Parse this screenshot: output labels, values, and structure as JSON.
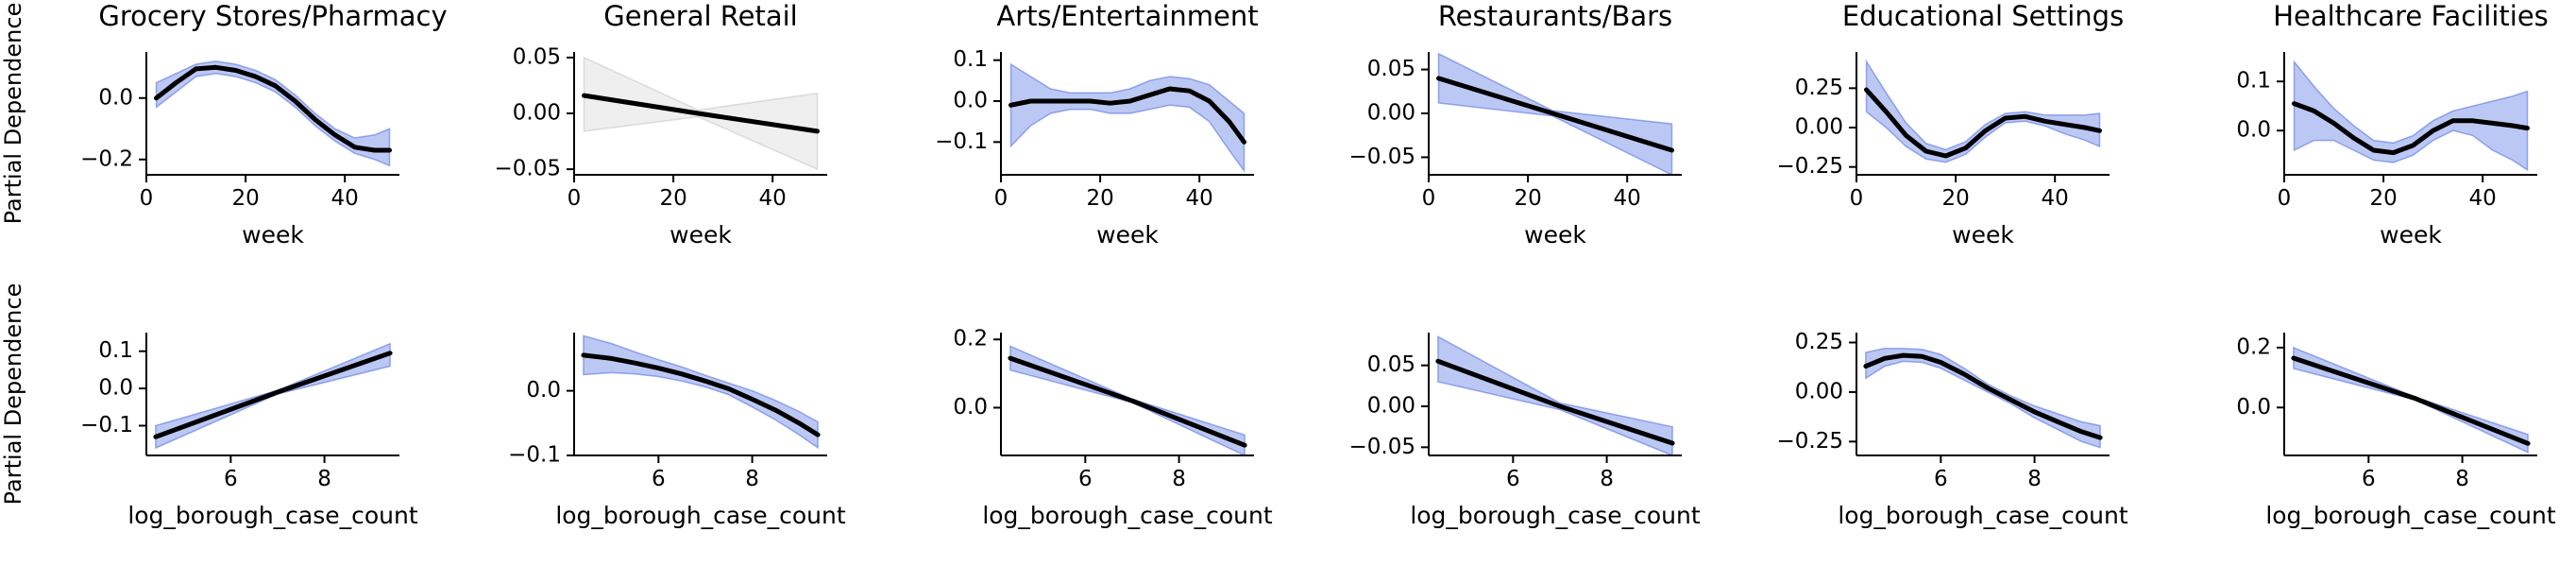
{
  "figure": {
    "row_ylabels": [
      "Partial Dependence",
      "Partial Dependence"
    ]
  },
  "chart_data": [
    {
      "type": "line",
      "title": "Grocery Stores/Pharmacy",
      "xlabel": "week",
      "ylabel": "",
      "xlim": [
        0,
        51
      ],
      "ylim": [
        -0.25,
        0.15
      ],
      "xticks": [
        0,
        20,
        40
      ],
      "xtick_labels": [
        "0",
        "20",
        "40"
      ],
      "yticks": [
        -0.2,
        0.0
      ],
      "ytick_labels": [
        "−0.2",
        "0.0"
      ],
      "band_color": "#4060e0",
      "band_opacity": 0.35,
      "series": [
        {
          "x": [
            2,
            6,
            10,
            14,
            18,
            22,
            26,
            30,
            34,
            38,
            42,
            46,
            49
          ],
          "y": [
            0.0,
            0.05,
            0.095,
            0.1,
            0.09,
            0.07,
            0.04,
            -0.01,
            -0.07,
            -0.12,
            -0.16,
            -0.17,
            -0.17
          ],
          "lower": [
            -0.03,
            0.02,
            0.07,
            0.08,
            0.07,
            0.05,
            0.02,
            -0.03,
            -0.09,
            -0.14,
            -0.18,
            -0.2,
            -0.22
          ],
          "upper": [
            0.05,
            0.08,
            0.11,
            0.12,
            0.11,
            0.09,
            0.06,
            0.01,
            -0.05,
            -0.1,
            -0.13,
            -0.12,
            -0.1
          ]
        }
      ]
    },
    {
      "type": "line",
      "title": "General Retail",
      "xlabel": "week",
      "ylabel": "",
      "xlim": [
        0,
        51
      ],
      "ylim": [
        -0.055,
        0.055
      ],
      "xticks": [
        0,
        20,
        40
      ],
      "xtick_labels": [
        "0",
        "20",
        "40"
      ],
      "yticks": [
        -0.05,
        0.0,
        0.05
      ],
      "ytick_labels": [
        "−0.05",
        "0.00",
        "0.05"
      ],
      "band_color": "#c0c0c0",
      "band_opacity": 0.25,
      "series": [
        {
          "x": [
            2,
            25,
            49
          ],
          "y": [
            0.016,
            0.0,
            -0.016
          ],
          "lower": [
            -0.016,
            -0.003,
            -0.05
          ],
          "upper": [
            0.05,
            0.003,
            0.018
          ]
        }
      ]
    },
    {
      "type": "line",
      "title": "Arts/Entertainment",
      "xlabel": "week",
      "ylabel": "",
      "xlim": [
        0,
        51
      ],
      "ylim": [
        -0.18,
        0.12
      ],
      "xticks": [
        0,
        20,
        40
      ],
      "xtick_labels": [
        "0",
        "20",
        "40"
      ],
      "yticks": [
        -0.1,
        0.0,
        0.1
      ],
      "ytick_labels": [
        "−0.1",
        "0.0",
        "0.1"
      ],
      "band_color": "#4060e0",
      "band_opacity": 0.35,
      "series": [
        {
          "x": [
            2,
            6,
            10,
            14,
            18,
            22,
            26,
            30,
            34,
            38,
            42,
            46,
            49
          ],
          "y": [
            -0.01,
            0.0,
            0.0,
            0.0,
            0.0,
            -0.005,
            0.0,
            0.015,
            0.03,
            0.025,
            0.0,
            -0.05,
            -0.1
          ],
          "lower": [
            -0.11,
            -0.06,
            -0.03,
            -0.02,
            -0.02,
            -0.03,
            -0.03,
            -0.02,
            -0.01,
            -0.015,
            -0.05,
            -0.12,
            -0.17
          ],
          "upper": [
            0.09,
            0.06,
            0.03,
            0.02,
            0.02,
            0.02,
            0.03,
            0.05,
            0.06,
            0.055,
            0.04,
            0.0,
            -0.03
          ]
        }
      ]
    },
    {
      "type": "line",
      "title": "Restaurants/Bars",
      "xlabel": "week",
      "ylabel": "",
      "xlim": [
        0,
        51
      ],
      "ylim": [
        -0.07,
        0.07
      ],
      "xticks": [
        0,
        20,
        40
      ],
      "xtick_labels": [
        "0",
        "20",
        "40"
      ],
      "yticks": [
        -0.05,
        0.0,
        0.05
      ],
      "ytick_labels": [
        "−0.05",
        "0.00",
        "0.05"
      ],
      "band_color": "#4060e0",
      "band_opacity": 0.35,
      "series": [
        {
          "x": [
            2,
            25,
            49
          ],
          "y": [
            0.04,
            0.0,
            -0.042
          ],
          "lower": [
            0.012,
            -0.003,
            -0.07
          ],
          "upper": [
            0.068,
            0.003,
            -0.012
          ]
        }
      ]
    },
    {
      "type": "line",
      "title": "Educational Settings",
      "xlabel": "week",
      "ylabel": "",
      "xlim": [
        0,
        51
      ],
      "ylim": [
        -0.3,
        0.48
      ],
      "xticks": [
        0,
        20,
        40
      ],
      "xtick_labels": [
        "0",
        "20",
        "40"
      ],
      "yticks": [
        -0.25,
        0.0,
        0.25
      ],
      "ytick_labels": [
        "−0.25",
        "0.00",
        "0.25"
      ],
      "band_color": "#4060e0",
      "band_opacity": 0.35,
      "series": [
        {
          "x": [
            2,
            6,
            10,
            14,
            18,
            22,
            26,
            30,
            34,
            38,
            42,
            46,
            49
          ],
          "y": [
            0.24,
            0.1,
            -0.05,
            -0.15,
            -0.18,
            -0.13,
            -0.02,
            0.06,
            0.07,
            0.04,
            0.02,
            0.0,
            -0.02
          ],
          "lower": [
            0.1,
            0.0,
            -0.12,
            -0.2,
            -0.22,
            -0.17,
            -0.06,
            0.03,
            0.04,
            0.01,
            -0.04,
            -0.08,
            -0.12
          ],
          "upper": [
            0.42,
            0.22,
            0.03,
            -0.1,
            -0.14,
            -0.09,
            0.02,
            0.09,
            0.1,
            0.08,
            0.08,
            0.08,
            0.09
          ]
        }
      ]
    },
    {
      "type": "line",
      "title": "Healthcare Facilities",
      "xlabel": "week",
      "ylabel": "",
      "xlim": [
        0,
        51
      ],
      "ylim": [
        -0.09,
        0.16
      ],
      "xticks": [
        0,
        20,
        40
      ],
      "xtick_labels": [
        "0",
        "20",
        "40"
      ],
      "yticks": [
        0.0,
        0.1
      ],
      "ytick_labels": [
        "0.0",
        "0.1"
      ],
      "band_color": "#4060e0",
      "band_opacity": 0.35,
      "series": [
        {
          "x": [
            2,
            6,
            10,
            14,
            18,
            22,
            26,
            30,
            34,
            38,
            42,
            46,
            49
          ],
          "y": [
            0.055,
            0.04,
            0.015,
            -0.015,
            -0.04,
            -0.045,
            -0.03,
            0.0,
            0.02,
            0.02,
            0.015,
            0.01,
            0.005
          ],
          "lower": [
            -0.04,
            -0.02,
            -0.02,
            -0.04,
            -0.06,
            -0.065,
            -0.05,
            -0.02,
            0.0,
            -0.01,
            -0.04,
            -0.06,
            -0.08
          ],
          "upper": [
            0.14,
            0.09,
            0.045,
            0.01,
            -0.02,
            -0.025,
            -0.01,
            0.02,
            0.04,
            0.05,
            0.06,
            0.07,
            0.08
          ]
        }
      ]
    },
    {
      "type": "line",
      "title": "",
      "xlabel": "log_borough_case_count",
      "ylabel": "",
      "xlim": [
        4.2,
        9.6
      ],
      "ylim": [
        -0.18,
        0.15
      ],
      "xticks": [
        6,
        8
      ],
      "xtick_labels": [
        "6",
        "8"
      ],
      "yticks": [
        -0.1,
        0.0,
        0.1
      ],
      "ytick_labels": [
        "−0.1",
        "0.0",
        "0.1"
      ],
      "band_color": "#4060e0",
      "band_opacity": 0.35,
      "series": [
        {
          "x": [
            4.4,
            7,
            9.4
          ],
          "y": [
            -0.13,
            -0.01,
            0.095
          ],
          "lower": [
            -0.16,
            -0.015,
            0.06
          ],
          "upper": [
            -0.1,
            -0.005,
            0.12
          ]
        }
      ]
    },
    {
      "type": "line",
      "title": "",
      "xlabel": "log_borough_case_count",
      "ylabel": "",
      "xlim": [
        4.2,
        9.6
      ],
      "ylim": [
        -0.1,
        0.09
      ],
      "xticks": [
        6,
        8
      ],
      "xtick_labels": [
        "6",
        "8"
      ],
      "yticks": [
        -0.1,
        0.0
      ],
      "ytick_labels": [
        "−0.1",
        "0.0"
      ],
      "band_color": "#4060e0",
      "band_opacity": 0.35,
      "series": [
        {
          "x": [
            4.4,
            5,
            5.5,
            6,
            6.5,
            7,
            7.5,
            8,
            8.5,
            9,
            9.4
          ],
          "y": [
            0.055,
            0.05,
            0.043,
            0.035,
            0.026,
            0.015,
            0.003,
            -0.013,
            -0.03,
            -0.05,
            -0.068
          ],
          "lower": [
            0.025,
            0.028,
            0.026,
            0.022,
            0.015,
            0.006,
            -0.006,
            -0.025,
            -0.045,
            -0.068,
            -0.088
          ],
          "upper": [
            0.085,
            0.073,
            0.06,
            0.048,
            0.037,
            0.024,
            0.012,
            0.0,
            -0.015,
            -0.032,
            -0.048
          ]
        }
      ]
    },
    {
      "type": "line",
      "title": "",
      "xlabel": "log_borough_case_count",
      "ylabel": "",
      "xlim": [
        4.2,
        9.6
      ],
      "ylim": [
        -0.14,
        0.22
      ],
      "xticks": [
        6,
        8
      ],
      "xtick_labels": [
        "6",
        "8"
      ],
      "yticks": [
        0.0,
        0.2
      ],
      "ytick_labels": [
        "0.0",
        "0.2"
      ],
      "band_color": "#4060e0",
      "band_opacity": 0.35,
      "series": [
        {
          "x": [
            4.4,
            7,
            9.4
          ],
          "y": [
            0.145,
            0.02,
            -0.11
          ],
          "lower": [
            0.11,
            0.015,
            -0.14
          ],
          "upper": [
            0.18,
            0.025,
            -0.08
          ]
        }
      ]
    },
    {
      "type": "line",
      "title": "",
      "xlabel": "log_borough_case_count",
      "ylabel": "",
      "xlim": [
        4.2,
        9.6
      ],
      "ylim": [
        -0.06,
        0.09
      ],
      "xticks": [
        6,
        8
      ],
      "xtick_labels": [
        "6",
        "8"
      ],
      "yticks": [
        -0.05,
        0.0,
        0.05
      ],
      "ytick_labels": [
        "−0.05",
        "0.00",
        "0.05"
      ],
      "band_color": "#4060e0",
      "band_opacity": 0.35,
      "series": [
        {
          "x": [
            4.4,
            7,
            9.4
          ],
          "y": [
            0.055,
            0.0,
            -0.045
          ],
          "lower": [
            0.03,
            -0.004,
            -0.06
          ],
          "upper": [
            0.085,
            0.004,
            -0.025
          ]
        }
      ]
    },
    {
      "type": "line",
      "title": "",
      "xlabel": "log_borough_case_count",
      "ylabel": "",
      "xlim": [
        4.2,
        9.6
      ],
      "ylim": [
        -0.32,
        0.3
      ],
      "xticks": [
        6,
        8
      ],
      "xtick_labels": [
        "6",
        "8"
      ],
      "yticks": [
        -0.25,
        0.0,
        0.25
      ],
      "ytick_labels": [
        "−0.25",
        "0.00",
        "0.25"
      ],
      "band_color": "#4060e0",
      "band_opacity": 0.35,
      "series": [
        {
          "x": [
            4.4,
            4.8,
            5.2,
            5.6,
            6,
            6.5,
            7,
            7.5,
            8,
            8.5,
            9,
            9.4
          ],
          "y": [
            0.13,
            0.17,
            0.185,
            0.18,
            0.15,
            0.09,
            0.02,
            -0.04,
            -0.1,
            -0.15,
            -0.2,
            -0.23
          ],
          "lower": [
            0.07,
            0.13,
            0.155,
            0.15,
            0.12,
            0.06,
            0.0,
            -0.06,
            -0.13,
            -0.19,
            -0.25,
            -0.28
          ],
          "upper": [
            0.2,
            0.22,
            0.22,
            0.215,
            0.19,
            0.12,
            0.04,
            -0.02,
            -0.07,
            -0.11,
            -0.15,
            -0.17
          ]
        }
      ]
    },
    {
      "type": "line",
      "title": "",
      "xlabel": "log_borough_case_count",
      "ylabel": "",
      "xlim": [
        4.2,
        9.6
      ],
      "ylim": [
        -0.16,
        0.25
      ],
      "xticks": [
        6,
        8
      ],
      "xtick_labels": [
        "6",
        "8"
      ],
      "yticks": [
        0.0,
        0.2
      ],
      "ytick_labels": [
        "0.0",
        "0.2"
      ],
      "band_color": "#4060e0",
      "band_opacity": 0.35,
      "series": [
        {
          "x": [
            4.4,
            7,
            9.4
          ],
          "y": [
            0.165,
            0.03,
            -0.12
          ],
          "lower": [
            0.13,
            0.025,
            -0.15
          ],
          "upper": [
            0.2,
            0.035,
            -0.09
          ]
        }
      ]
    }
  ]
}
